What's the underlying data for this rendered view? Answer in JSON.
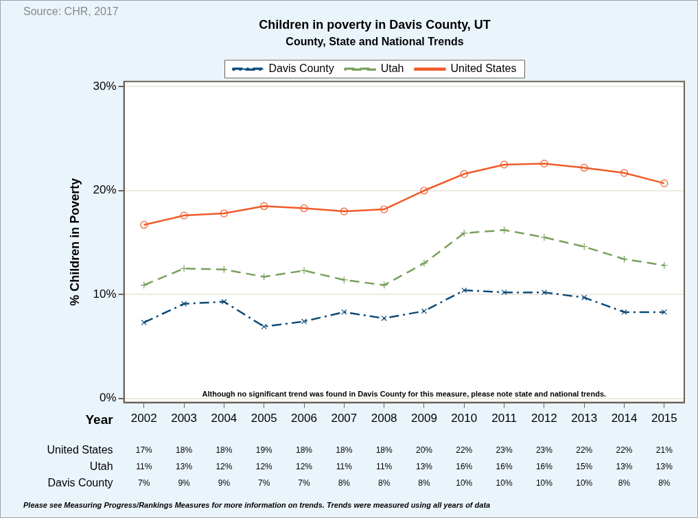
{
  "chart_data": {
    "type": "line",
    "title": "Children in poverty in Davis County, UT",
    "subtitle": "County, State and National Trends",
    "xlabel": "Year",
    "ylabel": "% Children in Poverty",
    "categories": [
      "2002",
      "2003",
      "2004",
      "2005",
      "2006",
      "2007",
      "2008",
      "2009",
      "2010",
      "2011",
      "2012",
      "2013",
      "2014",
      "2015"
    ],
    "ylim": [
      -0.4,
      30.5
    ],
    "yticks": [
      {
        "value": 0,
        "label": "0%"
      },
      {
        "value": 10,
        "label": "10%"
      },
      {
        "value": 20,
        "label": "20%"
      },
      {
        "value": 30,
        "label": "30%"
      }
    ],
    "grid": "y",
    "legend": "top",
    "series": [
      {
        "name": "Davis County",
        "color": "#0b4a78",
        "marker": "x",
        "line_style": "dashdot",
        "values": [
          7.3,
          9.1,
          9.3,
          6.9,
          7.4,
          8.3,
          7.7,
          8.4,
          10.4,
          10.2,
          10.2,
          9.7,
          8.3,
          8.3
        ],
        "value_labels": [
          "7%",
          "9%",
          "9%",
          "7%",
          "7%",
          "8%",
          "8%",
          "8%",
          "10%",
          "10%",
          "10%",
          "10%",
          "8%",
          "8%"
        ]
      },
      {
        "name": "Utah",
        "color": "#77a05a",
        "marker": "plus",
        "line_style": "dashed",
        "values": [
          10.9,
          12.5,
          12.4,
          11.7,
          12.3,
          11.4,
          10.9,
          13.0,
          15.9,
          16.2,
          15.5,
          14.6,
          13.4,
          12.8
        ],
        "value_labels": [
          "11%",
          "13%",
          "12%",
          "12%",
          "12%",
          "11%",
          "11%",
          "13%",
          "16%",
          "16%",
          "16%",
          "15%",
          "13%",
          "13%"
        ]
      },
      {
        "name": "United States",
        "color": "#f05a28",
        "marker": "circle",
        "line_style": "solid",
        "values": [
          16.7,
          17.6,
          17.8,
          18.5,
          18.3,
          18.0,
          18.2,
          20.0,
          21.6,
          22.5,
          22.6,
          22.2,
          21.7,
          20.7
        ],
        "value_labels": [
          "17%",
          "18%",
          "18%",
          "19%",
          "18%",
          "18%",
          "18%",
          "20%",
          "22%",
          "23%",
          "23%",
          "22%",
          "22%",
          "21%"
        ]
      }
    ],
    "annotations": [
      "Source: CHR, 2017",
      "Although no significant trend was found in Davis County for this measure, please note state and national trends.",
      "Please see Measuring Progress/Rankings Measures for more information on trends. Trends were measured using all years of data"
    ]
  }
}
